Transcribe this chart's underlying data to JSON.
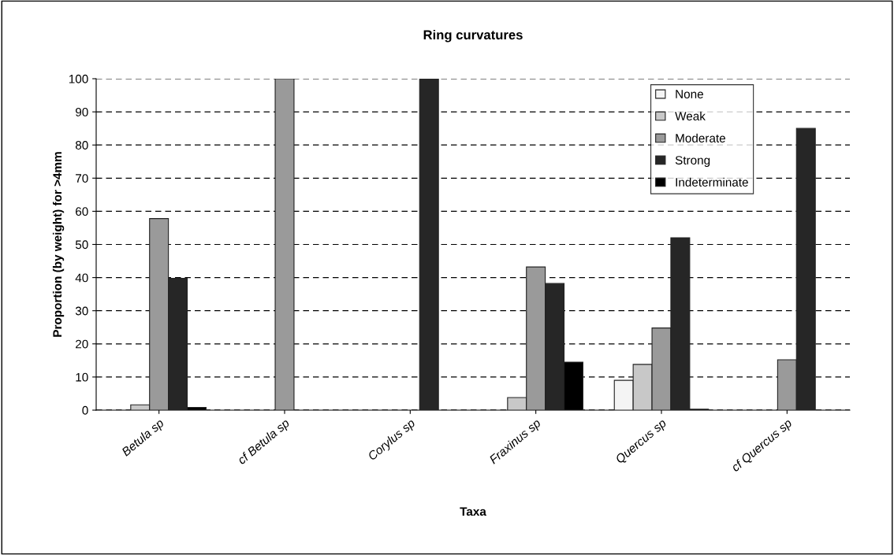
{
  "chart_data": {
    "type": "bar",
    "title": "Ring curvatures",
    "xlabel": "Taxa",
    "ylabel": "Proportion (by weight) for >4mm",
    "categories": [
      "Betula sp",
      "cf Betula sp",
      "Corylus sp",
      "Fraxinus sp",
      "Quercus sp",
      "cf Quercus sp"
    ],
    "series": [
      {
        "name": "None",
        "color": "#f4f4f4",
        "values": [
          null,
          0,
          0,
          null,
          9,
          0
        ]
      },
      {
        "name": "Weak",
        "color": "#c8c8c8",
        "values": [
          1.6,
          0,
          0,
          3.8,
          13.8,
          0
        ]
      },
      {
        "name": "Moderate",
        "color": "#9a9a9a",
        "values": [
          57.8,
          100,
          0,
          43.2,
          24.8,
          15.2
        ]
      },
      {
        "name": "Strong",
        "color": "#262626",
        "values": [
          39.8,
          0,
          100,
          38.2,
          52,
          85
        ]
      },
      {
        "name": "Indeterminate",
        "color": "#000000",
        "values": [
          0.8,
          0,
          0,
          14.5,
          0.3,
          0
        ]
      }
    ],
    "ylim": [
      0,
      100
    ],
    "yticks": [
      0,
      10,
      20,
      30,
      40,
      50,
      60,
      70,
      80,
      90,
      100
    ],
    "grid": "y",
    "legend": "top right"
  }
}
